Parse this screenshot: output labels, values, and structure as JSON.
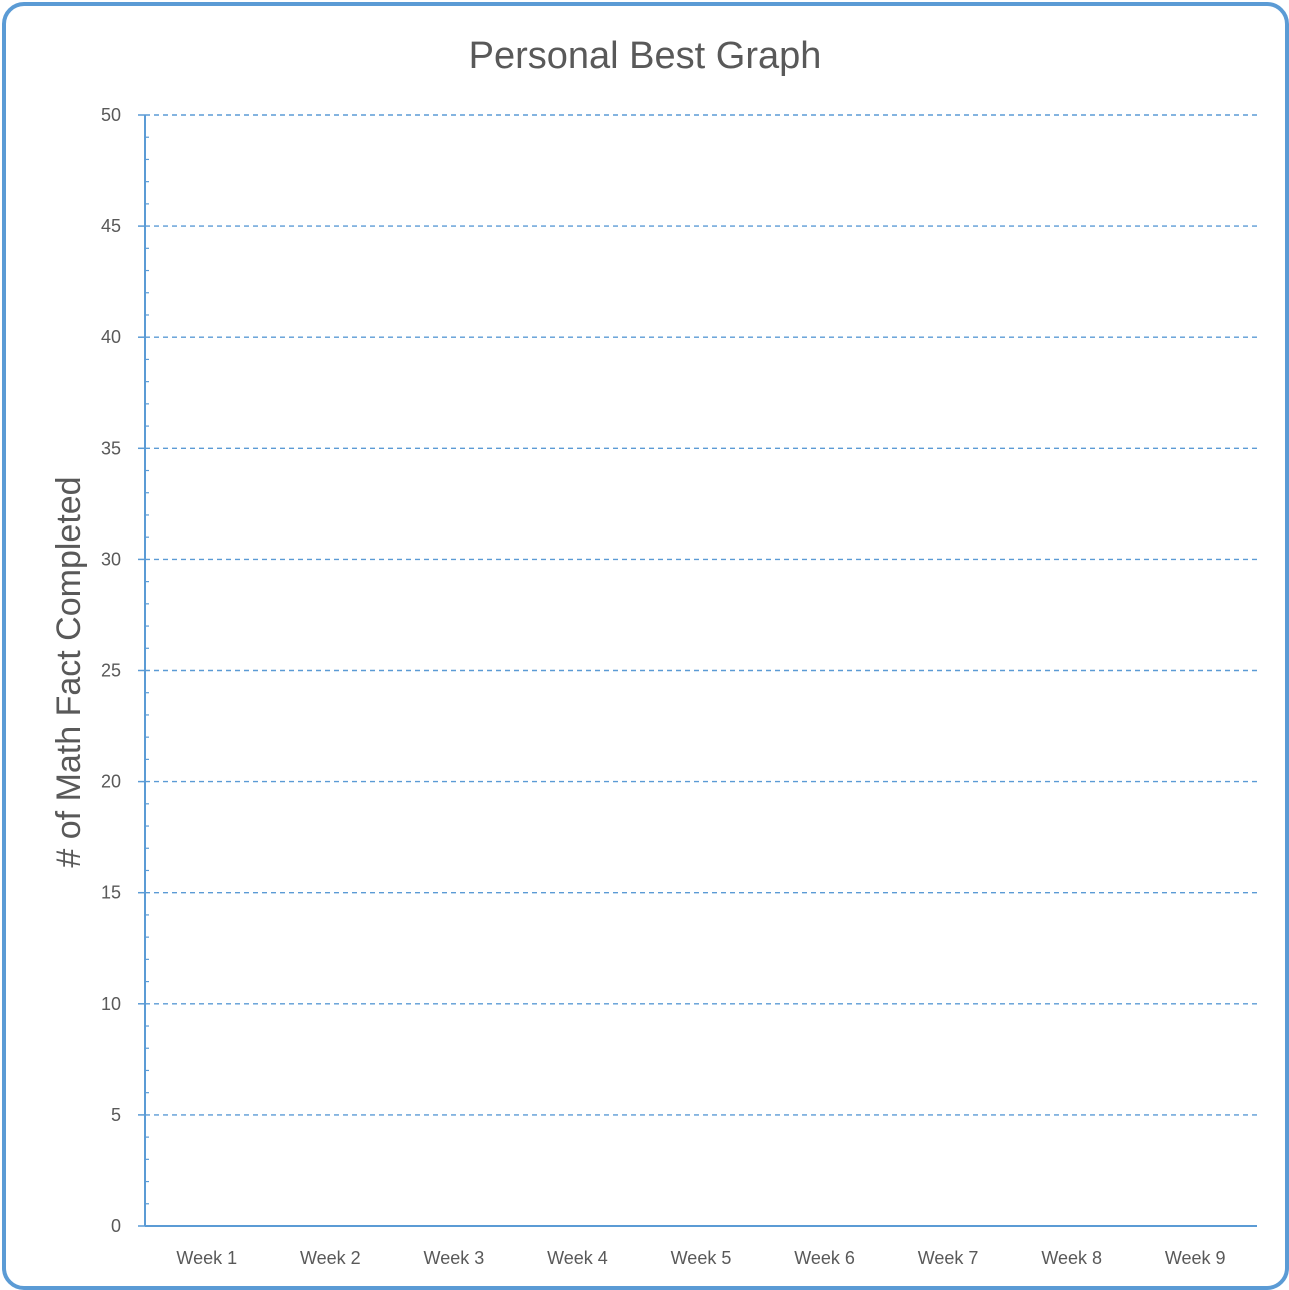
{
  "chart_data": {
    "type": "line",
    "title": "Personal Best Graph",
    "xlabel": "",
    "ylabel": "# of Math Fact Completed",
    "categories": [
      "Week 1",
      "Week 2",
      "Week 3",
      "Week 4",
      "Week 5",
      "Week 6",
      "Week 7",
      "Week 8",
      "Week 9"
    ],
    "series": [],
    "ylim": [
      0,
      50
    ],
    "y_major_step": 5,
    "y_minor_step": 1,
    "y_ticks": [
      "0",
      "5",
      "10",
      "15",
      "20",
      "25",
      "30",
      "35",
      "40",
      "45",
      "50"
    ],
    "grid": true,
    "grid_style": "dashed",
    "legend": "none",
    "colors": {
      "frame": "#5b9bd5",
      "axis": "#5b9bd5",
      "grid": "#5b9bd5",
      "text": "#595959"
    }
  }
}
